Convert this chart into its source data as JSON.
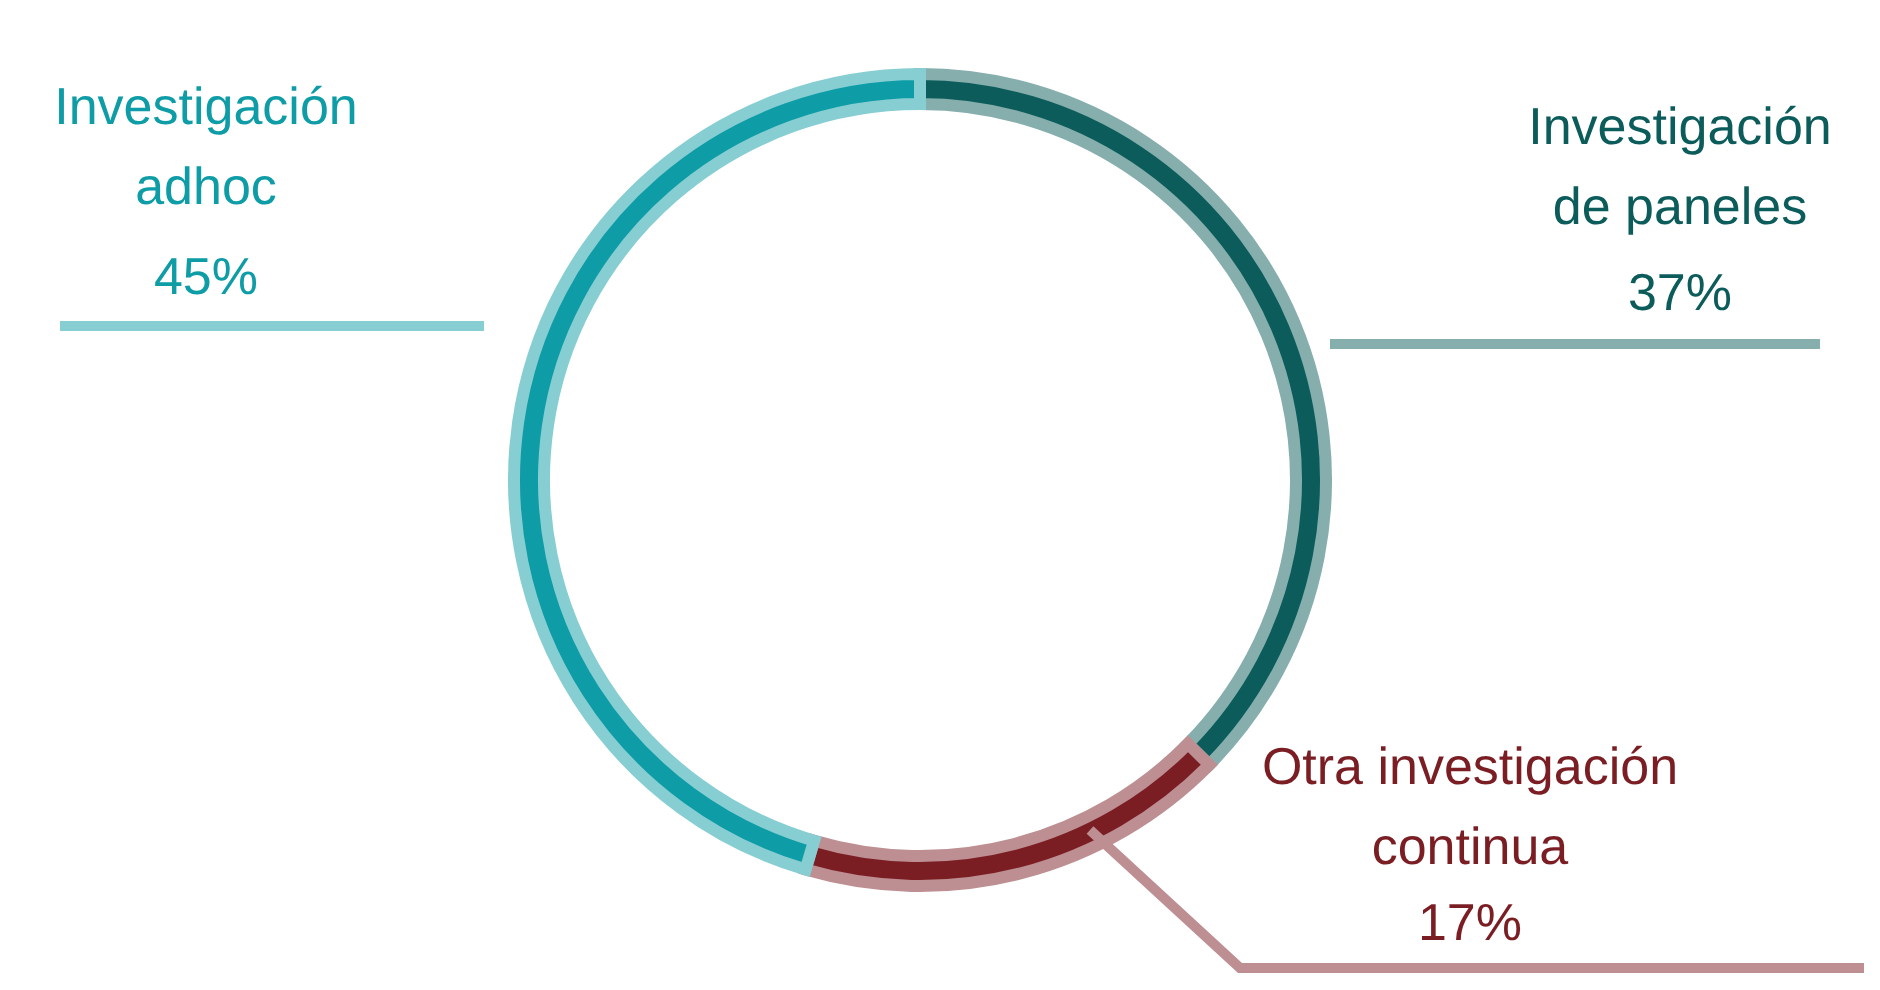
{
  "chart_data": {
    "type": "donut",
    "categories": [
      "Investigación de paneles",
      "Otra investigación continua",
      "Investigación adhoc"
    ],
    "values": [
      37,
      17,
      45
    ],
    "value_labels": [
      "37%",
      "17%",
      "45%"
    ],
    "colors": [
      "#0b5c5a",
      "#7a1e24",
      "#0e9ca6"
    ]
  }
}
